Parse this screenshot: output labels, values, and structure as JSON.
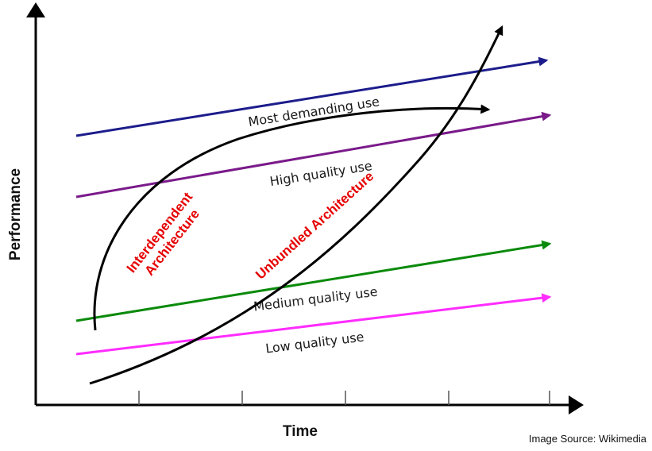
{
  "axes": {
    "x_title": "Time",
    "y_title": "Performance",
    "tick_count": 5
  },
  "market_lines": [
    {
      "label": "Most demanding use",
      "color": "#1c1c8c"
    },
    {
      "label": "High quality use",
      "color": "#7a1a8a"
    },
    {
      "label": "Medium quality use",
      "color": "#0a8a0a"
    },
    {
      "label": "Low quality use",
      "color": "#ff2cff"
    }
  ],
  "architectures": {
    "interdependent": {
      "line1": "Interdependent",
      "line2": "Architecture",
      "color": "#000000"
    },
    "unbundled": {
      "label": "Unbundled Architecture",
      "color": "#000000"
    }
  },
  "label_color": "#e60000",
  "source": "Image Source: Wikimedia"
}
